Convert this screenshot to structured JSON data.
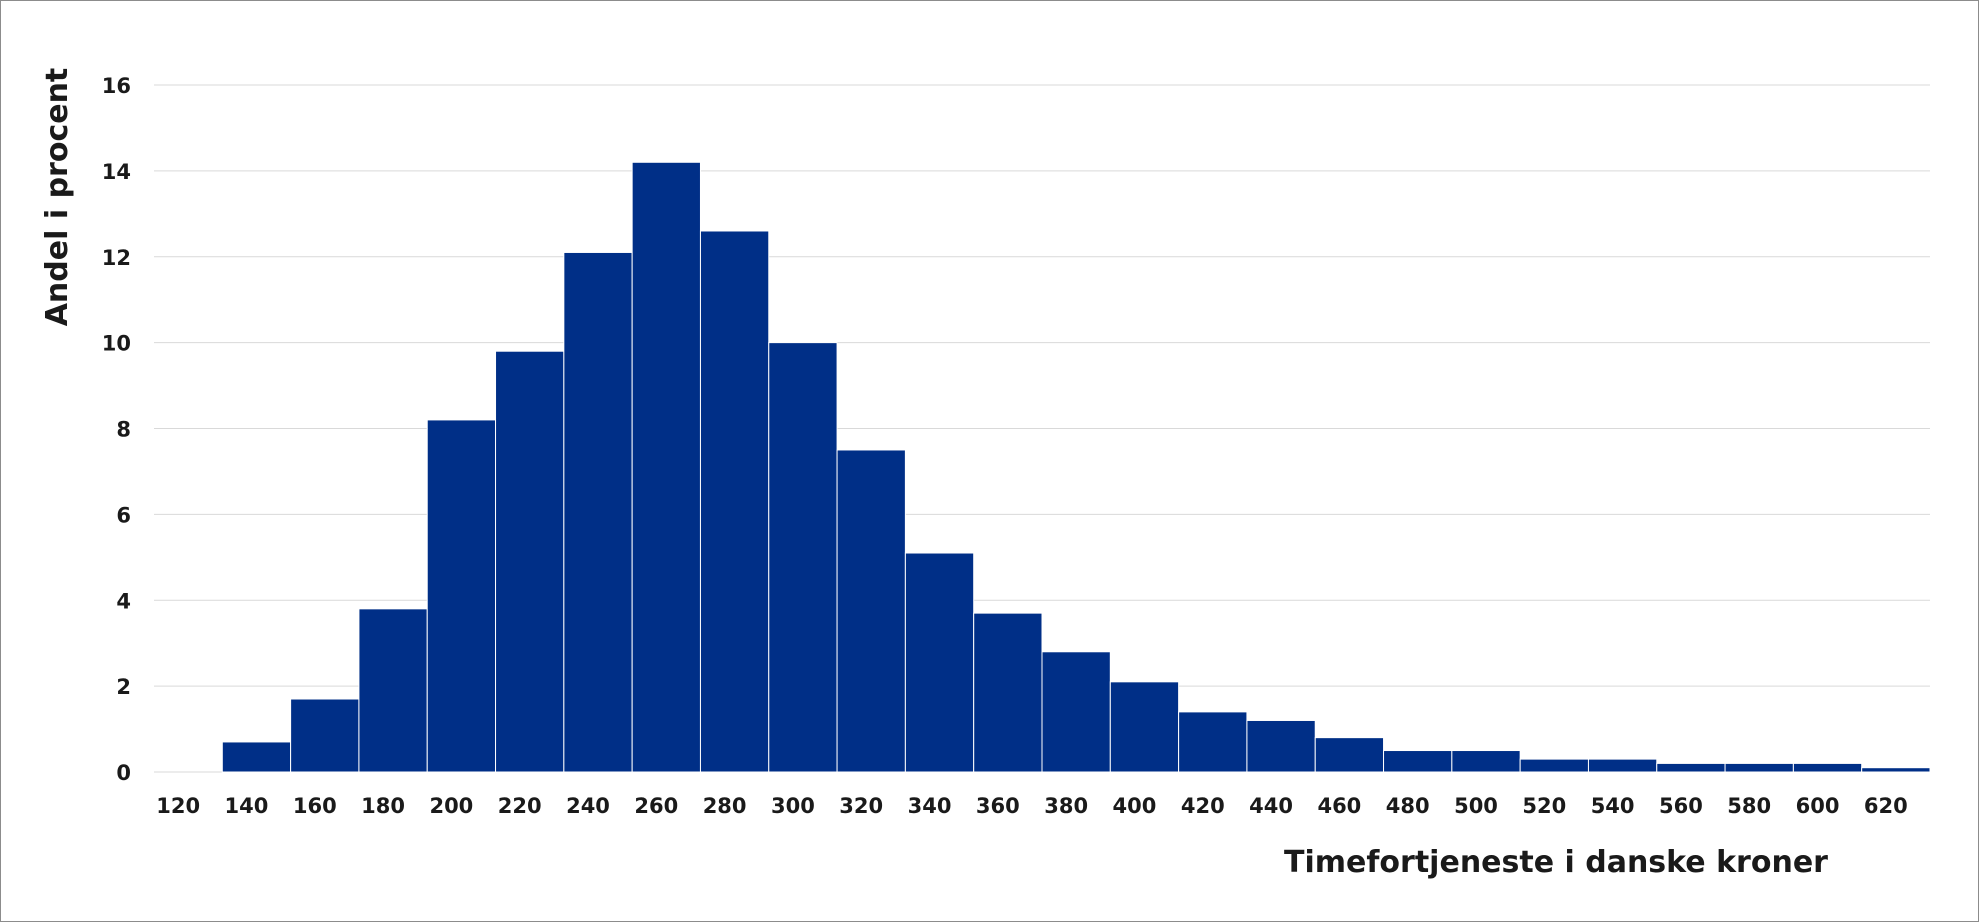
{
  "chart_data": {
    "type": "bar",
    "title": "",
    "xlabel": "Timefortjeneste i danske kroner",
    "ylabel": "Andel i procent",
    "categories": [
      "120",
      "140",
      "160",
      "180",
      "200",
      "220",
      "240",
      "260",
      "280",
      "300",
      "320",
      "340",
      "360",
      "380",
      "400",
      "420",
      "440",
      "460",
      "480",
      "500",
      "520",
      "540",
      "560",
      "580",
      "600",
      "620"
    ],
    "values": [
      0,
      0.7,
      1.7,
      3.8,
      8.2,
      9.8,
      12.1,
      14.2,
      12.6,
      10.0,
      7.5,
      5.1,
      3.7,
      2.8,
      2.1,
      1.4,
      1.2,
      0.8,
      0.5,
      0.5,
      0.3,
      0.3,
      0.2,
      0.2,
      0.2,
      0.1
    ],
    "yticks": [
      "0",
      "2",
      "4",
      "6",
      "8",
      "10",
      "12",
      "14",
      "16"
    ],
    "ylim": [
      0,
      16
    ],
    "grid": true,
    "bar_color": "#002f87",
    "grid_color": "#d9d9d9"
  }
}
